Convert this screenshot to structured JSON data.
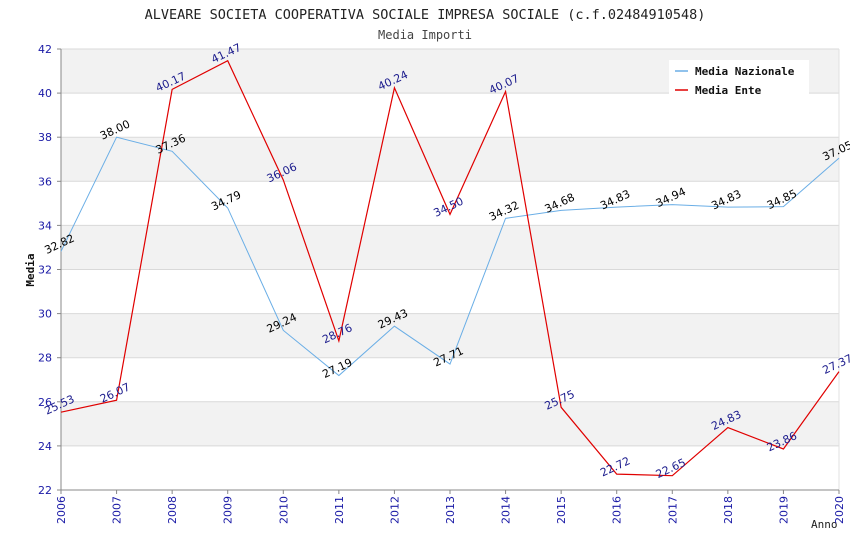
{
  "chart_data": {
    "type": "line",
    "title": "ALVEARE SOCIETA COOPERATIVA SOCIALE IMPRESA SOCIALE (c.f.02484910548)",
    "subtitle": "Media Importi",
    "xlabel": "Anno",
    "ylabel": "Media",
    "ylim": [
      22,
      42
    ],
    "yticks": [
      "22",
      "24",
      "26",
      "28",
      "30",
      "32",
      "34",
      "36",
      "38",
      "40",
      "42"
    ],
    "x": [
      "2006",
      "2007",
      "2008",
      "2009",
      "2010",
      "2011",
      "2012",
      "2013",
      "2014",
      "2015",
      "2016",
      "2017",
      "2018",
      "2019",
      "2020"
    ],
    "grid": true,
    "legend_position": "top-right",
    "series": [
      {
        "name": "Media Nazionale",
        "color": "#6aaee6",
        "label_color": "#000000",
        "values": [
          32.82,
          38.0,
          37.36,
          34.79,
          29.24,
          27.19,
          29.43,
          27.71,
          34.32,
          34.68,
          34.83,
          34.94,
          34.83,
          34.85,
          37.05
        ],
        "labels": [
          "32.82",
          "38.00",
          "37.36",
          "34.79",
          "29.24",
          "27.19",
          "29.43",
          "27.71",
          "34.32",
          "34.68",
          "34.83",
          "34.94",
          "34.83",
          "34.85",
          "37.05"
        ]
      },
      {
        "name": "Media Ente",
        "color": "#e00000",
        "label_color": "#1a1a8c",
        "values": [
          25.53,
          26.07,
          40.17,
          41.47,
          36.06,
          28.76,
          40.24,
          34.5,
          40.07,
          25.75,
          22.72,
          22.65,
          24.83,
          23.86,
          27.37
        ],
        "labels": [
          "25.53",
          "26.07",
          "40.17",
          "41.47",
          "36.06",
          "28.76",
          "40.24",
          "34.50",
          "40.07",
          "25.75",
          "22.72",
          "22.65",
          "24.83",
          "23.86",
          "27.37"
        ]
      }
    ]
  }
}
